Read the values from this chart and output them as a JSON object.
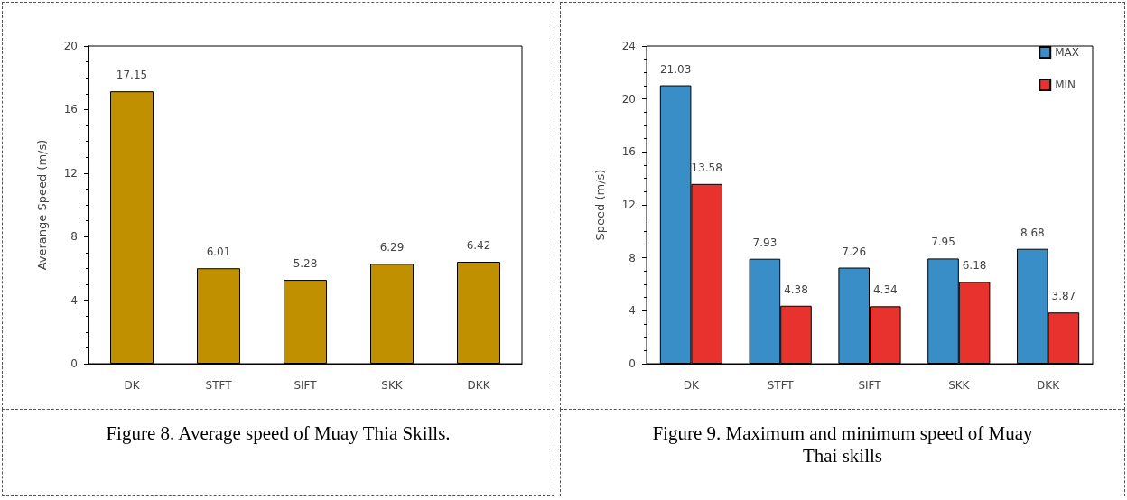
{
  "chart_data": [
    {
      "type": "bar",
      "ylabel": "Averange Speed (m/s)",
      "categories": [
        "DK",
        "STFT",
        "SIFT",
        "SKK",
        "DKK"
      ],
      "values": [
        17.15,
        6.01,
        5.28,
        6.29,
        6.42
      ],
      "color": "#c09000",
      "ylim": [
        0,
        20
      ],
      "yticks": [
        0,
        4,
        8,
        12,
        16,
        20
      ],
      "grid": false,
      "data_labels": true,
      "annotations": [
        "Figure 8. Average speed of Muay Thia Skills."
      ]
    },
    {
      "type": "bar",
      "ylabel": "Speed (m/s)",
      "categories": [
        "DK",
        "STFT",
        "SIFT",
        "SKK",
        "DKK"
      ],
      "series": [
        {
          "name": "MAX",
          "color": "#3a8ec8",
          "values": [
            21.03,
            7.93,
            7.26,
            7.95,
            8.68
          ]
        },
        {
          "name": "MIN",
          "color": "#e8322e",
          "values": [
            13.58,
            4.38,
            4.34,
            6.18,
            3.87
          ]
        }
      ],
      "ylim": [
        0,
        24
      ],
      "yticks": [
        0,
        4,
        8,
        12,
        16,
        20,
        24
      ],
      "grid": false,
      "legend": "top right",
      "data_labels": true,
      "annotations": [
        "Figure 9. Maximum and minimum speed of Muay Thai skills"
      ]
    }
  ]
}
